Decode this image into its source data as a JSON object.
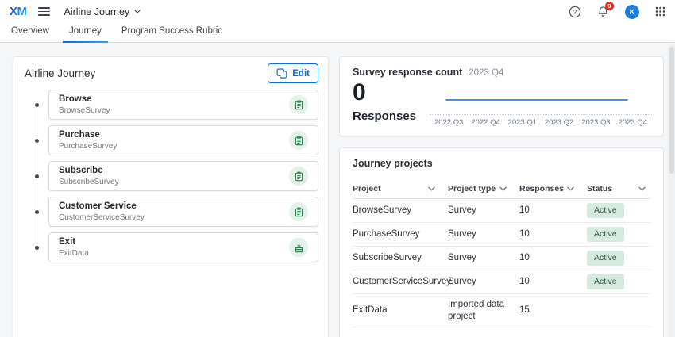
{
  "topbar": {
    "logo_text": "XM",
    "program_switcher": "Airline Journey",
    "notification_count": "9",
    "avatar_initial": "K"
  },
  "tabs": [
    {
      "label": "Overview",
      "active": false
    },
    {
      "label": "Journey",
      "active": true
    },
    {
      "label": "Program Success Rubric",
      "active": false
    }
  ],
  "journey_panel": {
    "title": "Airline Journey",
    "edit_button": "Edit",
    "steps": [
      {
        "name": "Browse",
        "project": "BrowseSurvey",
        "icon": "survey"
      },
      {
        "name": "Purchase",
        "project": "PurchaseSurvey",
        "icon": "survey"
      },
      {
        "name": "Subscribe",
        "project": "SubscribeSurvey",
        "icon": "survey"
      },
      {
        "name": "Customer Service",
        "project": "CustomerServiceSurvey",
        "icon": "survey"
      },
      {
        "name": "Exit",
        "project": "ExitData",
        "icon": "imported-data"
      }
    ]
  },
  "response_panel": {
    "title": "Survey response count",
    "period": "2023 Q4",
    "count": "0",
    "count_label": "Responses"
  },
  "chart_data": {
    "type": "line",
    "title": "Survey response count",
    "x": [
      "2022 Q3",
      "2022 Q4",
      "2023 Q1",
      "2023 Q2",
      "2023 Q3",
      "2023 Q4"
    ],
    "series": [
      {
        "name": "Responses",
        "values": [
          0,
          0,
          0,
          0,
          0,
          0
        ]
      }
    ],
    "grid": false,
    "legend": "none"
  },
  "projects_panel": {
    "title": "Journey projects",
    "columns": [
      "Project",
      "Project type",
      "Responses",
      "Status"
    ],
    "rows": [
      {
        "project": "BrowseSurvey",
        "type": "Survey",
        "responses": "10",
        "status": "Active"
      },
      {
        "project": "PurchaseSurvey",
        "type": "Survey",
        "responses": "10",
        "status": "Active"
      },
      {
        "project": "SubscribeSurvey",
        "type": "Survey",
        "responses": "10",
        "status": "Active"
      },
      {
        "project": "CustomerServiceSurvey",
        "type": "Survey",
        "responses": "10",
        "status": "Active"
      },
      {
        "project": "ExitData",
        "type": "Imported data project",
        "responses": "15",
        "status": ""
      }
    ]
  },
  "colors": {
    "accent_blue": "#0b6cde",
    "tab_underline_start": "#1464d9",
    "tab_underline_end": "#2fa8e0",
    "icon_green": "#2e7d4f",
    "icon_green_bg": "#e4f2e9",
    "badge_green_bg": "#d7eadf",
    "badge_green_text": "#1f5c41",
    "chart_line": "#4a90e2",
    "notification_red": "#d93025",
    "avatar_blue": "#1d7edd"
  }
}
